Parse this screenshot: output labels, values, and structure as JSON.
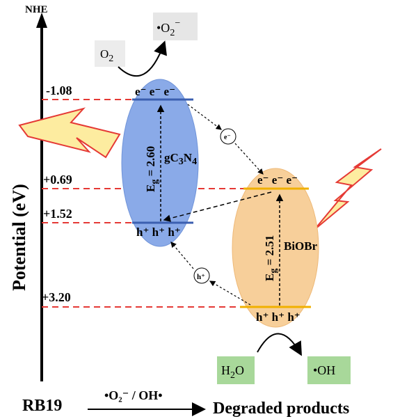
{
  "axis": {
    "title": "Potential (eV)",
    "top_label": "NHE",
    "levels": [
      "-1.08",
      "+0.69",
      "+1.52",
      "+3.20"
    ]
  },
  "gc3n4": {
    "name_main": "gC",
    "name_sub1": "3",
    "name_mid": "N",
    "name_sub2": "4",
    "band_gap_symbol": "E",
    "band_gap_sub": "g",
    "band_gap_value": " = 2.60",
    "cb_text": "e⁻ e⁻ e⁻",
    "vb_text": "h⁺ h⁺ h⁺",
    "color": "#8aaae8"
  },
  "biobr": {
    "name": "BiOBr",
    "band_gap_symbol": "E",
    "band_gap_sub": "g",
    "band_gap_value": " = 2.51",
    "cb_text": "e⁻ e⁻ e⁻",
    "vb_text": "h⁺ h⁺ h⁺",
    "color": "#f7cf9a"
  },
  "transfer": {
    "electron_badge": "e⁻",
    "hole_badge": "h⁺"
  },
  "reactions": {
    "o2": "O",
    "o2_sub": "2",
    "superoxide": "•O",
    "superoxide_sub": "2",
    "superoxide_sup": "−",
    "h2o_h": "H",
    "h2o_sub": "2",
    "h2o_o": "O",
    "hydroxyl": "•OH"
  },
  "bottom_equation": {
    "reactant": "RB19",
    "conditions": "•O₂⁻ / OH•",
    "product": "Degraded products"
  },
  "colors": {
    "dashed_line": "#e53935",
    "gc3n4_band": "#3b5fb0",
    "biobr_band": "#f0b000",
    "reaction_box": "#a8d89a",
    "superoxide_box": "#e6e6e6",
    "lightning_fill": "#fdeca0",
    "lightning_stroke": "#e53935"
  }
}
